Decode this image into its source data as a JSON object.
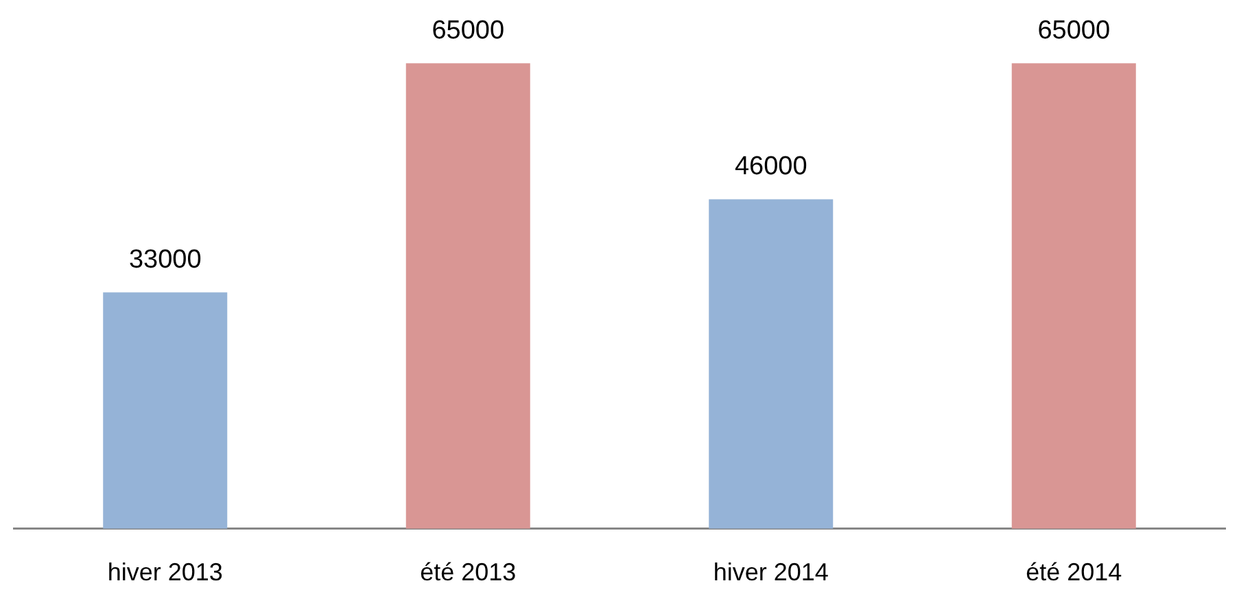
{
  "chart_data": {
    "type": "bar",
    "categories": [
      "hiver 2013",
      "été 2013",
      "hiver 2014",
      "été 2014"
    ],
    "values": [
      33000,
      65000,
      46000,
      65000
    ],
    "colors": [
      "#95b3d7",
      "#d99694",
      "#95b3d7",
      "#d99694"
    ],
    "data_labels": true
  }
}
